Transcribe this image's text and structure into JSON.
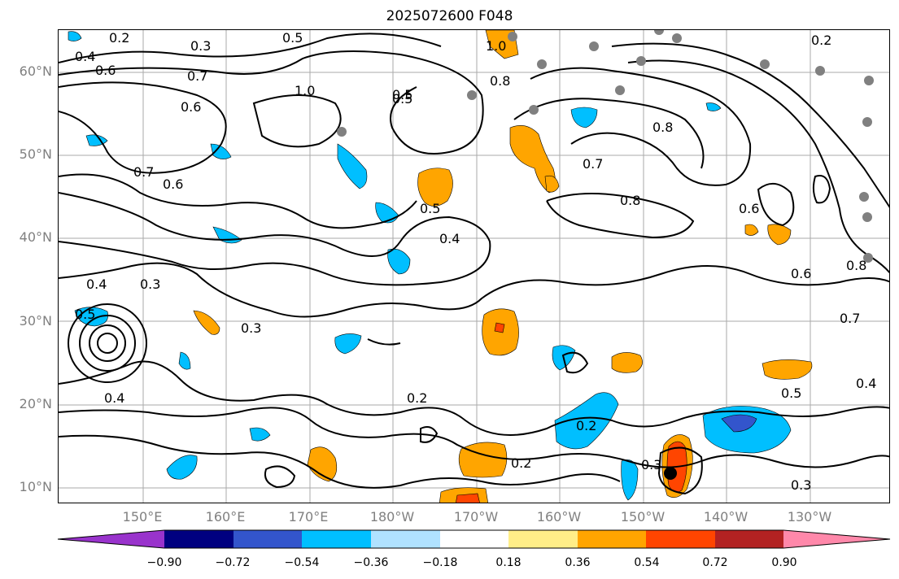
{
  "title": "2025072600 F048",
  "lat_labels": [
    "60°N",
    "50°N",
    "40°N",
    "30°N",
    "20°N",
    "10°N"
  ],
  "lon_labels": [
    "150°E",
    "160°E",
    "170°E",
    "180°W",
    "170°W",
    "160°W",
    "150°W",
    "140°W",
    "130°W"
  ],
  "colorbar": {
    "ticks": [
      "−0.90",
      "−0.72",
      "−0.54",
      "−0.36",
      "−0.18",
      "0.18",
      "0.36",
      "0.54",
      "0.72",
      "0.90"
    ],
    "colors": [
      "#9933cc",
      "#000080",
      "#3355cc",
      "#00bfff",
      "#b0e2ff",
      "#ffffff",
      "#ffee88",
      "#ffa500",
      "#ff4500",
      "#b22222",
      "#ff88aa"
    ]
  },
  "contour_labels": [
    "0.2",
    "0.3",
    "0.4",
    "0.5",
    "0.6",
    "0.7",
    "0.8",
    "1.0"
  ],
  "contour_colors": {
    "line": "#000000",
    "station": "#808080"
  }
}
